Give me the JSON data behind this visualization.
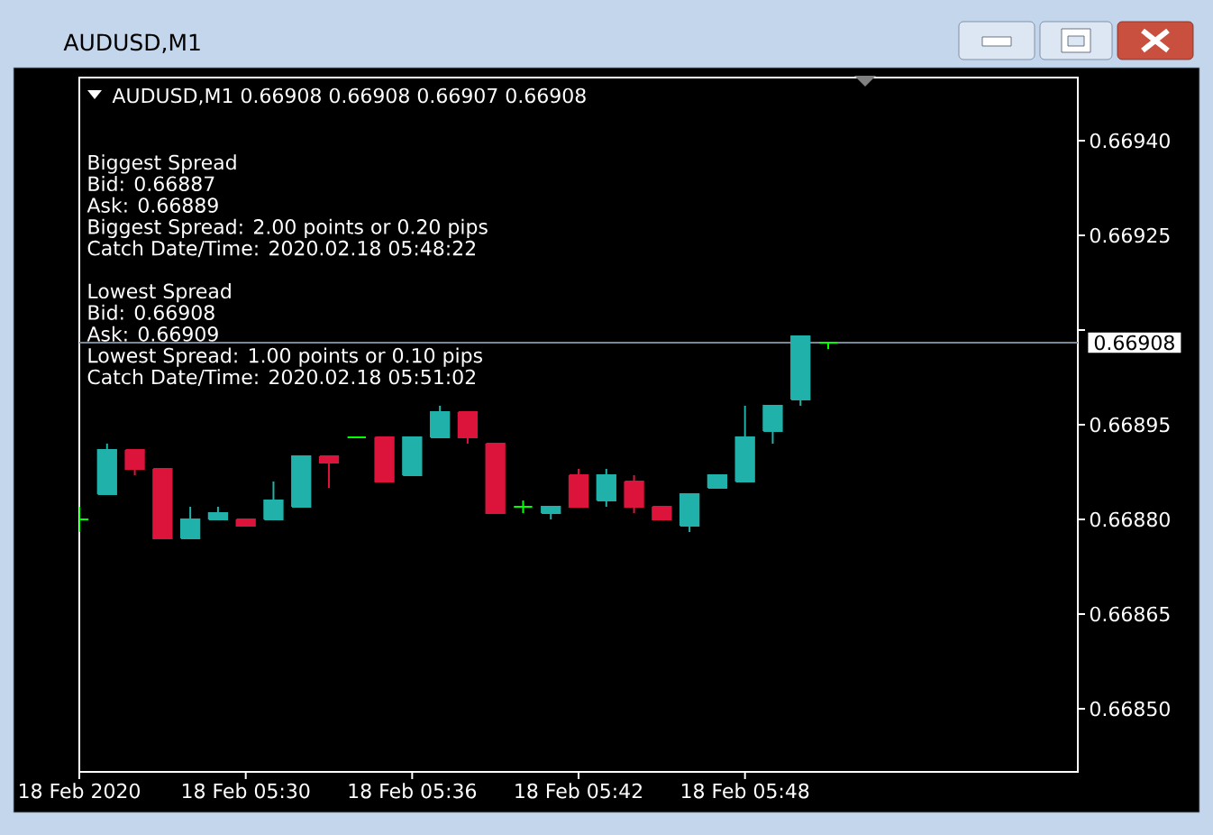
{
  "chart_data": {
    "type": "candlestick",
    "title": "AUDUSD,M1",
    "subtitle": "AUDUSD,M1  0.66908 0.66908 0.66907 0.66908",
    "x": [
      "2020-02-18T05:24",
      "2020-02-18T05:25",
      "2020-02-18T05:26",
      "2020-02-18T05:27",
      "2020-02-18T05:28",
      "2020-02-18T05:29",
      "2020-02-18T05:30",
      "2020-02-18T05:31",
      "2020-02-18T05:32",
      "2020-02-18T05:33",
      "2020-02-18T05:34",
      "2020-02-18T05:35",
      "2020-02-18T05:36",
      "2020-02-18T05:37",
      "2020-02-18T05:38",
      "2020-02-18T05:39",
      "2020-02-18T05:40",
      "2020-02-18T05:41",
      "2020-02-18T05:42",
      "2020-02-18T05:43",
      "2020-02-18T05:44",
      "2020-02-18T05:45",
      "2020-02-18T05:46",
      "2020-02-18T05:47",
      "2020-02-18T05:48",
      "2020-02-18T05:49",
      "2020-02-18T05:50",
      "2020-02-18T05:51"
    ],
    "ohlc": [
      [
        0.6688,
        0.66882,
        0.66878,
        0.6688
      ],
      [
        0.66884,
        0.66892,
        0.66884,
        0.66891
      ],
      [
        0.66891,
        0.66891,
        0.66887,
        0.66888
      ],
      [
        0.66888,
        0.66888,
        0.66877,
        0.66877
      ],
      [
        0.66877,
        0.66882,
        0.66877,
        0.6688
      ],
      [
        0.6688,
        0.66882,
        0.6688,
        0.66881
      ],
      [
        0.6688,
        0.6688,
        0.66879,
        0.66879
      ],
      [
        0.6688,
        0.66886,
        0.6688,
        0.66883
      ],
      [
        0.66882,
        0.6689,
        0.66882,
        0.6689
      ],
      [
        0.6689,
        0.6689,
        0.66885,
        0.66889
      ],
      [
        0.66893,
        0.66893,
        0.66893,
        0.66893
      ],
      [
        0.66893,
        0.66893,
        0.66886,
        0.66886
      ],
      [
        0.66887,
        0.66893,
        0.66887,
        0.66893
      ],
      [
        0.66893,
        0.66898,
        0.66893,
        0.66897
      ],
      [
        0.66897,
        0.66897,
        0.66892,
        0.66893
      ],
      [
        0.66892,
        0.66892,
        0.66881,
        0.66881
      ],
      [
        0.66882,
        0.66883,
        0.66881,
        0.66882
      ],
      [
        0.66881,
        0.66882,
        0.6688,
        0.66882
      ],
      [
        0.66887,
        0.66888,
        0.66882,
        0.66882
      ],
      [
        0.66883,
        0.66888,
        0.66882,
        0.66887
      ],
      [
        0.66886,
        0.66887,
        0.66881,
        0.66882
      ],
      [
        0.66882,
        0.66882,
        0.6688,
        0.6688
      ],
      [
        0.66879,
        0.66884,
        0.66878,
        0.66884
      ],
      [
        0.66885,
        0.66887,
        0.66885,
        0.66887
      ],
      [
        0.66886,
        0.66898,
        0.66886,
        0.66893
      ],
      [
        0.66894,
        0.66898,
        0.66892,
        0.66898
      ],
      [
        0.66899,
        0.66909,
        0.66898,
        0.66909
      ],
      [
        0.66908,
        0.66908,
        0.66907,
        0.66908
      ]
    ],
    "colors": [
      "#00ff00",
      "#20b2aa",
      "#dc143c",
      "#dc143c",
      "#20b2aa",
      "#20b2aa",
      "#dc143c",
      "#20b2aa",
      "#20b2aa",
      "#dc143c",
      "#00ff00",
      "#dc143c",
      "#20b2aa",
      "#20b2aa",
      "#dc143c",
      "#dc143c",
      "#00ff00",
      "#20b2aa",
      "#dc143c",
      "#20b2aa",
      "#dc143c",
      "#dc143c",
      "#20b2aa",
      "#20b2aa",
      "#20b2aa",
      "#20b2aa",
      "#20b2aa",
      "#00ff00"
    ],
    "xlim": [
      "2020-02-18T05:24",
      "2020-02-18T06:00"
    ],
    "xticks": [
      {
        "value": "2020-02-18T05:24",
        "label": "18 Feb 2020"
      },
      {
        "value": "2020-02-18T05:30",
        "label": "18 Feb 05:30"
      },
      {
        "value": "2020-02-18T05:36",
        "label": "18 Feb 05:36"
      },
      {
        "value": "2020-02-18T05:42",
        "label": "18 Feb 05:42"
      },
      {
        "value": "2020-02-18T05:48",
        "label": "18 Feb 05:48"
      }
    ],
    "ylim": [
      0.6684,
      0.6695
    ],
    "yticks": [
      {
        "value": 0.6694,
        "label": "0.66940"
      },
      0.66925,
      {
        "value": 0.6691,
        "label": null
      },
      0.66895,
      {
        "value": 0.6688,
        "label": "0.66880"
      },
      0.66865,
      {
        "value": 0.6685,
        "label": "0.66850"
      }
    ],
    "ref_lines": [
      {
        "axis": "y",
        "value": 0.66908,
        "label": "0.66908",
        "color": "#778899"
      }
    ],
    "annotations": [
      "Biggest Spread",
      "Bid: 0.66887",
      "Ask: 0.66889",
      "Biggest Spread: 2.00 points or 0.20 pips",
      "Catch Date/Time: 2020.02.18 05:48:22",
      "Lowest Spread",
      "Bid: 0.66908",
      "Ask: 0.66909",
      "Lowest Spread: 1.00 points or 0.10 pips",
      "Catch Date/Time: 2020.02.18 05:51:02"
    ]
  }
}
